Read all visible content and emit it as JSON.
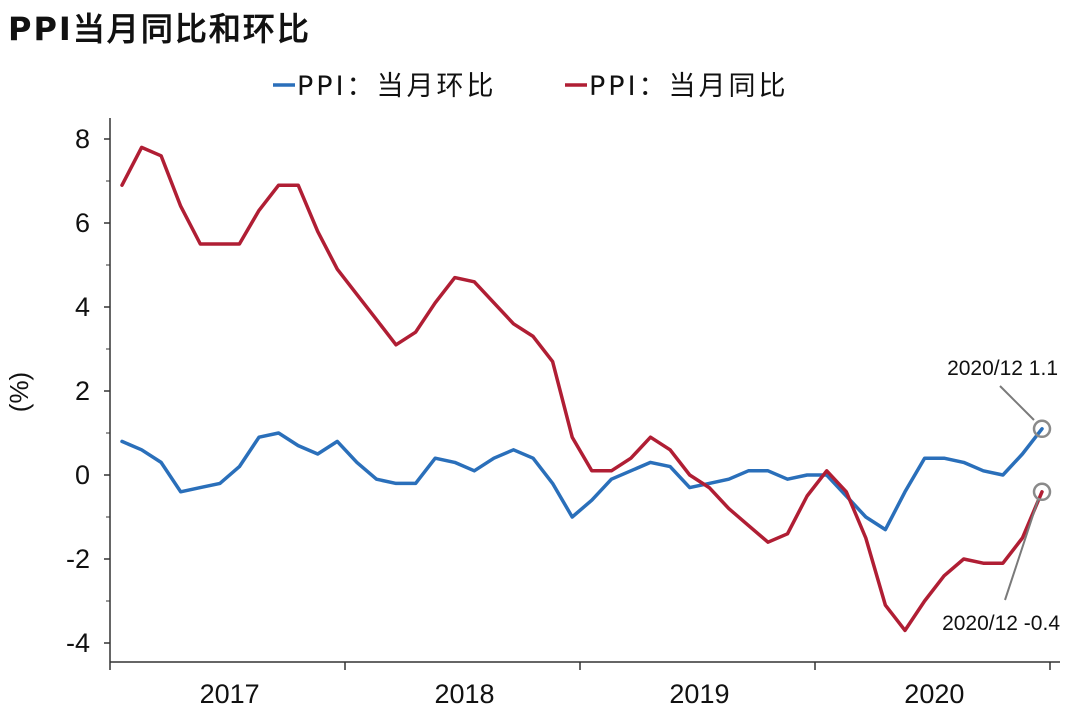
{
  "chart_data": {
    "type": "line",
    "title": "PPI当月同比和环比",
    "ylabel": "(%)",
    "ylim": [
      -4.5,
      8.5
    ],
    "yticks": [
      8,
      6,
      4,
      2,
      0,
      -2,
      -4
    ],
    "ytick_labels": [
      "8",
      "6",
      "4",
      "2",
      "0",
      "-2",
      "-4"
    ],
    "year_labels": [
      "2017",
      "2018",
      "2019",
      "2020"
    ],
    "legend_position": "top-center",
    "months": [
      "2017/01",
      "2017/02",
      "2017/03",
      "2017/04",
      "2017/05",
      "2017/06",
      "2017/07",
      "2017/08",
      "2017/09",
      "2017/10",
      "2017/11",
      "2017/12",
      "2018/01",
      "2018/02",
      "2018/03",
      "2018/04",
      "2018/05",
      "2018/06",
      "2018/07",
      "2018/08",
      "2018/09",
      "2018/10",
      "2018/11",
      "2018/12",
      "2019/01",
      "2019/02",
      "2019/03",
      "2019/04",
      "2019/05",
      "2019/06",
      "2019/07",
      "2019/08",
      "2019/09",
      "2019/10",
      "2019/11",
      "2019/12",
      "2020/01",
      "2020/02",
      "2020/03",
      "2020/04",
      "2020/05",
      "2020/06",
      "2020/07",
      "2020/08",
      "2020/09",
      "2020/10",
      "2020/11",
      "2020/12"
    ],
    "series": [
      {
        "name": "PPI：当月环比",
        "color": "#2a6fba",
        "values": [
          0.8,
          0.6,
          0.3,
          -0.4,
          -0.3,
          -0.2,
          0.2,
          0.9,
          1.0,
          0.7,
          0.5,
          0.8,
          0.3,
          -0.1,
          -0.2,
          -0.2,
          0.4,
          0.3,
          0.1,
          0.4,
          0.6,
          0.4,
          -0.2,
          -1.0,
          -0.6,
          -0.1,
          0.1,
          0.3,
          0.2,
          -0.3,
          -0.2,
          -0.1,
          0.1,
          0.1,
          -0.1,
          0.0,
          0.0,
          -0.5,
          -1.0,
          -1.3,
          -0.4,
          0.4,
          0.4,
          0.3,
          0.1,
          0.0,
          0.5,
          1.1
        ]
      },
      {
        "name": "PPI：当月同比",
        "color": "#b01e34",
        "values": [
          6.9,
          7.8,
          7.6,
          6.4,
          5.5,
          5.5,
          5.5,
          6.3,
          6.9,
          6.9,
          5.8,
          4.9,
          4.3,
          3.7,
          3.1,
          3.4,
          4.1,
          4.7,
          4.6,
          4.1,
          3.6,
          3.3,
          2.7,
          0.9,
          0.1,
          0.1,
          0.4,
          0.9,
          0.6,
          0.0,
          -0.3,
          -0.8,
          -1.2,
          -1.6,
          -1.4,
          -0.5,
          0.1,
          -0.4,
          -1.5,
          -3.1,
          -3.7,
          -3.0,
          -2.4,
          -2.0,
          -2.1,
          -2.1,
          -1.5,
          -0.4
        ]
      }
    ],
    "annotations": [
      {
        "label": "2020/12 1.1",
        "series": 0,
        "index": 47
      },
      {
        "label": "2020/12 -0.4",
        "series": 1,
        "index": 47
      }
    ]
  }
}
